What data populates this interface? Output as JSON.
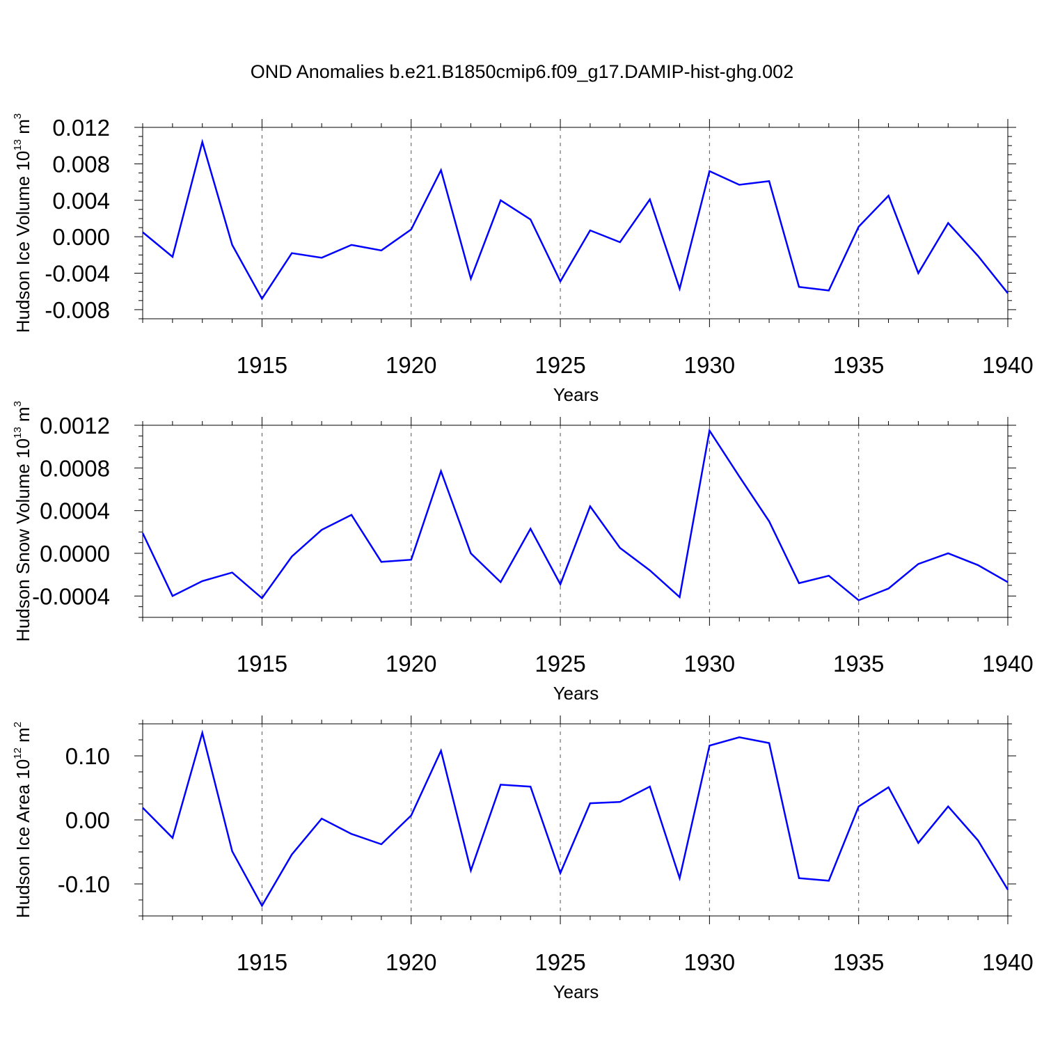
{
  "title": "OND Anomalies b.e21.B1850cmip6.f09_g17.DAMIP-hist-ghg.002",
  "colors": {
    "series": "#0000ff",
    "axis": "#000000",
    "grid": "#555555"
  },
  "chart_data": [
    {
      "type": "line",
      "ylabel_main": "Hudson Ice Volume 10",
      "ylabel_exp": "13",
      "ylabel_unit": " m",
      "ylabel_unit_exp": "3",
      "xlabel": "Years",
      "xlim": [
        1911,
        1940
      ],
      "ylim": [
        -0.009,
        0.012
      ],
      "ytick_values": [
        -0.008,
        -0.004,
        0.0,
        0.004,
        0.008,
        0.012
      ],
      "ytick_labels": [
        "-0.008",
        "-0.004",
        "0.000",
        "0.004",
        "0.008",
        "0.012"
      ],
      "xtick_values": [
        1915,
        1920,
        1925,
        1930,
        1935,
        1940
      ],
      "xtick_labels": [
        "1915",
        "1920",
        "1925",
        "1930",
        "1935",
        "1940"
      ],
      "grid": "vertical dashed at labeled years",
      "x": [
        1911,
        1912,
        1913,
        1914,
        1915,
        1916,
        1917,
        1918,
        1919,
        1920,
        1921,
        1922,
        1923,
        1924,
        1925,
        1926,
        1927,
        1928,
        1929,
        1930,
        1931,
        1932,
        1933,
        1934,
        1935,
        1936,
        1937,
        1938,
        1939,
        1940
      ],
      "values": [
        0.0005,
        -0.0022,
        0.0104,
        -0.0009,
        -0.0068,
        -0.0018,
        -0.0023,
        -0.0009,
        -0.0015,
        0.0008,
        0.0073,
        -0.0046,
        0.004,
        0.0019,
        -0.0049,
        0.0007,
        -0.0006,
        0.0041,
        -0.0057,
        0.0072,
        0.0057,
        0.0061,
        -0.0055,
        -0.0059,
        0.0011,
        0.0045,
        -0.004,
        0.0015,
        -0.0021,
        -0.0062
      ]
    },
    {
      "type": "line",
      "ylabel_main": "Hudson Snow Volume 10",
      "ylabel_exp": "13",
      "ylabel_unit": " m",
      "ylabel_unit_exp": "3",
      "xlabel": "Years",
      "xlim": [
        1911,
        1940
      ],
      "ylim": [
        -0.0006,
        0.0012
      ],
      "ytick_values": [
        -0.0004,
        0.0,
        0.0004,
        0.0008,
        0.0012
      ],
      "ytick_labels": [
        "-0.0004",
        "0.0000",
        "0.0004",
        "0.0008",
        "0.0012"
      ],
      "xtick_values": [
        1915,
        1920,
        1925,
        1930,
        1935,
        1940
      ],
      "xtick_labels": [
        "1915",
        "1920",
        "1925",
        "1930",
        "1935",
        "1940"
      ],
      "grid": "vertical dashed at labeled years",
      "x": [
        1911,
        1912,
        1913,
        1914,
        1915,
        1916,
        1917,
        1918,
        1919,
        1920,
        1921,
        1922,
        1923,
        1924,
        1925,
        1926,
        1927,
        1928,
        1929,
        1930,
        1931,
        1932,
        1933,
        1934,
        1935,
        1936,
        1937,
        1938,
        1939,
        1940
      ],
      "values": [
        0.00019,
        -0.0004,
        -0.00026,
        -0.00018,
        -0.00042,
        -3e-05,
        0.00022,
        0.00036,
        -8e-05,
        -6e-05,
        0.00077,
        0.0,
        -0.00027,
        0.00023,
        -0.00029,
        0.00044,
        5e-05,
        -0.00016,
        -0.00041,
        0.00115,
        0.00072,
        0.0003,
        -0.00028,
        -0.00021,
        -0.00044,
        -0.00033,
        -0.0001,
        0.0,
        -0.00011,
        -0.00027
      ]
    },
    {
      "type": "line",
      "ylabel_main": "Hudson Ice Area 10",
      "ylabel_exp": "12",
      "ylabel_unit": " m",
      "ylabel_unit_exp": "2",
      "xlabel": "Years",
      "xlim": [
        1911,
        1940
      ],
      "ylim": [
        -0.15,
        0.15
      ],
      "ytick_values": [
        -0.1,
        0.0,
        0.1
      ],
      "ytick_labels": [
        "-0.10",
        "0.00",
        "0.10"
      ],
      "xtick_values": [
        1915,
        1920,
        1925,
        1930,
        1935,
        1940
      ],
      "xtick_labels": [
        "1915",
        "1920",
        "1925",
        "1930",
        "1935",
        "1940"
      ],
      "grid": "vertical dashed at labeled years",
      "x": [
        1911,
        1912,
        1913,
        1914,
        1915,
        1916,
        1917,
        1918,
        1919,
        1920,
        1921,
        1922,
        1923,
        1924,
        1925,
        1926,
        1927,
        1928,
        1929,
        1930,
        1931,
        1932,
        1933,
        1934,
        1935,
        1936,
        1937,
        1938,
        1939,
        1940
      ],
      "values": [
        0.019,
        -0.028,
        0.136,
        -0.049,
        -0.134,
        -0.054,
        0.002,
        -0.022,
        -0.038,
        0.007,
        0.108,
        -0.079,
        0.055,
        0.052,
        -0.083,
        0.026,
        0.028,
        0.052,
        -0.091,
        0.116,
        0.129,
        0.12,
        -0.091,
        -0.095,
        0.021,
        0.051,
        -0.036,
        0.021,
        -0.032,
        -0.109
      ]
    }
  ]
}
